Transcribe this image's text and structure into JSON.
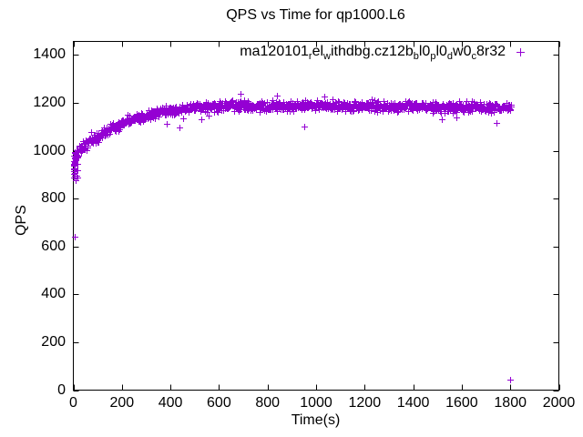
{
  "title": "QPS vs Time for qp1000.L6",
  "colors": {
    "series": "#9400d3",
    "axis": "#000000",
    "text": "#000000",
    "background": "#ffffff"
  },
  "legend": {
    "marker_glyph": "+",
    "label_plain": "ma120101_rel_withdbg.cz12b_bl0_pl0_dw0_c8r32",
    "segments": [
      {
        "t": "ma120101"
      },
      {
        "s": "r"
      },
      {
        "t": "el"
      },
      {
        "s": "w"
      },
      {
        "t": "ithdbg.cz12b"
      },
      {
        "s": "b"
      },
      {
        "t": "l0"
      },
      {
        "s": "p"
      },
      {
        "t": "l0"
      },
      {
        "s": "d"
      },
      {
        "t": "w0"
      },
      {
        "s": "c"
      },
      {
        "t": "8r32"
      }
    ]
  },
  "chart_data": {
    "type": "scatter",
    "title": "QPS vs Time for qp1000.L6",
    "xlabel": "Time(s)",
    "ylabel": "QPS",
    "xlim": [
      0,
      2000
    ],
    "ylim": [
      0,
      1457
    ],
    "xticks": [
      0,
      200,
      400,
      600,
      800,
      1000,
      1200,
      1400,
      1600,
      1800,
      2000
    ],
    "yticks": [
      0,
      200,
      400,
      600,
      800,
      1000,
      1200,
      1400
    ],
    "grid": false,
    "legend_position": "top-right-inside",
    "series": [
      {
        "name": "ma120101_rel_withdbg.cz12b_bl0_pl0_dw0_c8r32",
        "color": "#9400d3",
        "marker": "plus",
        "t_start": 1,
        "t_end": 1805,
        "sample_interval_s": 1.5,
        "trend_points": [
          [
            0,
            945
          ],
          [
            10,
            988
          ],
          [
            25,
            1008
          ],
          [
            50,
            1026
          ],
          [
            75,
            1048
          ],
          [
            100,
            1062
          ],
          [
            150,
            1090
          ],
          [
            200,
            1114
          ],
          [
            250,
            1132
          ],
          [
            300,
            1148
          ],
          [
            350,
            1161
          ],
          [
            400,
            1172
          ],
          [
            450,
            1179
          ],
          [
            500,
            1184
          ],
          [
            600,
            1187
          ],
          [
            700,
            1191
          ],
          [
            800,
            1187
          ],
          [
            900,
            1189
          ],
          [
            1000,
            1191
          ],
          [
            1100,
            1186
          ],
          [
            1200,
            1189
          ],
          [
            1300,
            1186
          ],
          [
            1400,
            1187
          ],
          [
            1500,
            1184
          ],
          [
            1600,
            1181
          ],
          [
            1700,
            1184
          ],
          [
            1805,
            1182
          ]
        ],
        "noise_sd_qps": 10,
        "noise_sd_early_qps": 14,
        "early_t_limit": 120,
        "noise_clip_qps": 34,
        "dip_probability": 0.006,
        "dip_depth_qps": [
          25,
          70
        ],
        "warmup_cluster": {
          "t_min": 0,
          "t_max": 16,
          "qps_min": 878,
          "qps_max": 1008,
          "count": 34
        },
        "outliers": [
          [
            4,
            640
          ],
          [
            690,
            1238
          ],
          [
            838,
            1230
          ],
          [
            950,
            1100
          ],
          [
            1035,
            1228
          ],
          [
            1576,
            1140
          ],
          [
            1800,
            45
          ]
        ],
        "seed": 1337
      }
    ]
  }
}
